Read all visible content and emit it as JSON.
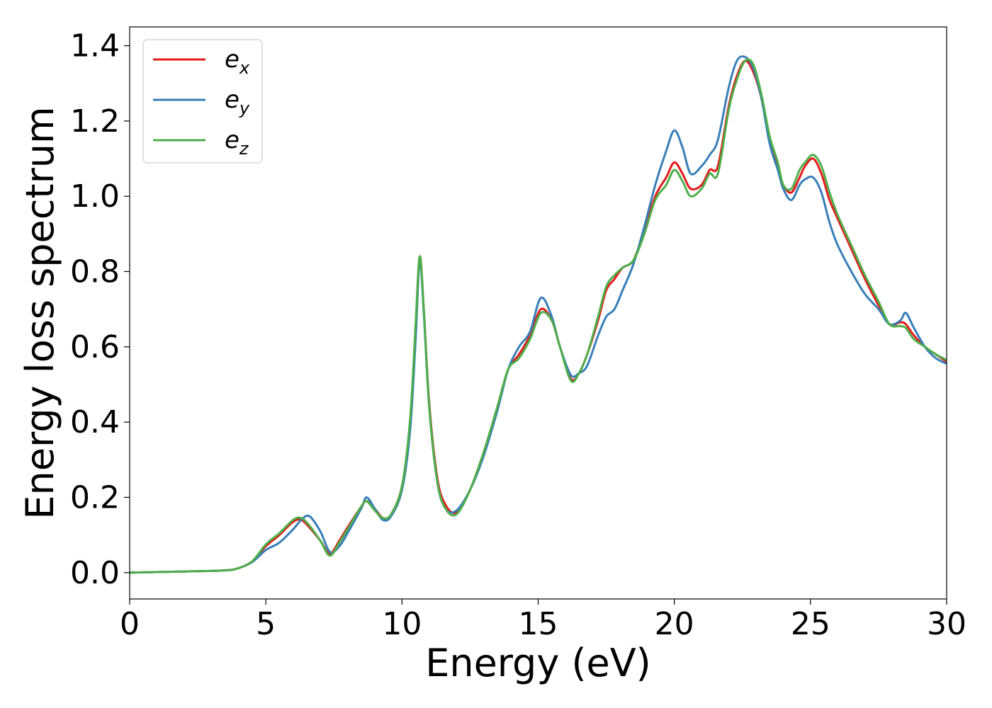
{
  "chart_data": {
    "type": "line",
    "title": "",
    "xlabel": "Energy (eV)",
    "ylabel": "Energy loss spectrum",
    "xlim": [
      0,
      30
    ],
    "ylim": [
      -0.07,
      1.45
    ],
    "xticks": [
      0,
      5,
      10,
      15,
      20,
      25,
      30
    ],
    "xtick_labels": [
      "0",
      "5",
      "10",
      "15",
      "20",
      "25",
      "30"
    ],
    "yticks": [
      0.0,
      0.2,
      0.4,
      0.6,
      0.8,
      1.0,
      1.2,
      1.4
    ],
    "ytick_labels": [
      "0.0",
      "0.2",
      "0.4",
      "0.6",
      "0.8",
      "1.0",
      "1.2",
      "1.4"
    ],
    "grid": false,
    "legend_placement": "top-left",
    "series": [
      {
        "name": "e_x",
        "legend_base": "e",
        "legend_sub": "x",
        "color": "#e41a1c",
        "x": [
          0,
          2,
          3.5,
          4,
          4.5,
          5,
          5.5,
          6,
          6.3,
          6.6,
          7,
          7.35,
          7.7,
          8,
          8.5,
          8.7,
          9,
          9.3,
          9.6,
          10,
          10.3,
          10.5,
          10.65,
          10.8,
          11,
          11.3,
          11.6,
          12,
          12.5,
          13,
          13.5,
          13.9,
          14.3,
          14.7,
          15.1,
          15.5,
          15.8,
          16.2,
          16.5,
          16.8,
          17.2,
          17.5,
          17.8,
          18.1,
          18.5,
          18.9,
          19.3,
          19.7,
          20,
          20.3,
          20.6,
          21,
          21.3,
          21.6,
          22,
          22.3,
          22.6,
          22.9,
          23.2,
          23.5,
          23.8,
          24,
          24.3,
          24.6,
          24.8,
          25.1,
          25.4,
          25.7,
          26,
          26.5,
          27,
          27.5,
          27.9,
          28.3,
          28.5,
          28.8,
          29.2,
          29.6,
          30
        ],
        "y": [
          0.0,
          0.003,
          0.006,
          0.012,
          0.03,
          0.07,
          0.1,
          0.135,
          0.14,
          0.12,
          0.085,
          0.05,
          0.085,
          0.12,
          0.175,
          0.19,
          0.17,
          0.145,
          0.155,
          0.23,
          0.4,
          0.65,
          0.84,
          0.7,
          0.45,
          0.25,
          0.18,
          0.16,
          0.22,
          0.32,
          0.44,
          0.54,
          0.58,
          0.63,
          0.7,
          0.67,
          0.6,
          0.515,
          0.53,
          0.58,
          0.67,
          0.75,
          0.78,
          0.81,
          0.83,
          0.91,
          1.0,
          1.05,
          1.09,
          1.06,
          1.02,
          1.03,
          1.07,
          1.08,
          1.24,
          1.32,
          1.36,
          1.33,
          1.26,
          1.15,
          1.08,
          1.03,
          1.01,
          1.05,
          1.08,
          1.1,
          1.06,
          0.99,
          0.94,
          0.86,
          0.78,
          0.71,
          0.66,
          0.665,
          0.66,
          0.63,
          0.6,
          0.58,
          0.56
        ]
      },
      {
        "name": "e_y",
        "legend_base": "e",
        "legend_sub": "y",
        "color": "#377eb8",
        "x": [
          0,
          2,
          3.5,
          4,
          4.5,
          5,
          5.5,
          6,
          6.3,
          6.6,
          7,
          7.35,
          7.7,
          8,
          8.5,
          8.7,
          9,
          9.3,
          9.6,
          10,
          10.3,
          10.5,
          10.65,
          10.8,
          11,
          11.3,
          11.6,
          12,
          12.5,
          13,
          13.5,
          13.9,
          14.3,
          14.7,
          15.1,
          15.5,
          15.8,
          16.2,
          16.5,
          16.8,
          17.2,
          17.5,
          17.8,
          18.1,
          18.5,
          18.9,
          19.3,
          19.7,
          20,
          20.3,
          20.6,
          21,
          21.3,
          21.6,
          22,
          22.3,
          22.6,
          22.9,
          23.2,
          23.5,
          23.8,
          24,
          24.3,
          24.6,
          24.8,
          25.1,
          25.4,
          25.7,
          26,
          26.5,
          27,
          27.5,
          27.9,
          28.3,
          28.5,
          28.8,
          29.2,
          29.6,
          30
        ],
        "y": [
          0.0,
          0.003,
          0.006,
          0.012,
          0.028,
          0.06,
          0.08,
          0.115,
          0.14,
          0.15,
          0.11,
          0.055,
          0.07,
          0.105,
          0.17,
          0.2,
          0.17,
          0.14,
          0.15,
          0.22,
          0.38,
          0.62,
          0.83,
          0.69,
          0.44,
          0.24,
          0.17,
          0.165,
          0.22,
          0.31,
          0.43,
          0.54,
          0.6,
          0.64,
          0.73,
          0.68,
          0.6,
          0.525,
          0.53,
          0.55,
          0.63,
          0.68,
          0.7,
          0.75,
          0.82,
          0.92,
          1.03,
          1.12,
          1.175,
          1.13,
          1.06,
          1.08,
          1.11,
          1.15,
          1.29,
          1.36,
          1.37,
          1.34,
          1.26,
          1.14,
          1.07,
          1.02,
          0.99,
          1.03,
          1.045,
          1.05,
          1.01,
          0.93,
          0.87,
          0.8,
          0.74,
          0.7,
          0.66,
          0.67,
          0.69,
          0.65,
          0.6,
          0.57,
          0.555
        ]
      },
      {
        "name": "e_z",
        "legend_base": "e",
        "legend_sub": "z",
        "color": "#4daf4a",
        "x": [
          0,
          2,
          3.5,
          4,
          4.5,
          5,
          5.5,
          6,
          6.3,
          6.6,
          7,
          7.35,
          7.7,
          8,
          8.5,
          8.7,
          9,
          9.3,
          9.6,
          10,
          10.3,
          10.5,
          10.65,
          10.8,
          11,
          11.3,
          11.6,
          12,
          12.5,
          13,
          13.5,
          13.9,
          14.3,
          14.7,
          15.1,
          15.5,
          15.8,
          16.2,
          16.5,
          16.8,
          17.2,
          17.5,
          17.8,
          18.1,
          18.5,
          18.9,
          19.3,
          19.7,
          20,
          20.3,
          20.6,
          21,
          21.3,
          21.6,
          22,
          22.3,
          22.6,
          22.9,
          23.2,
          23.5,
          23.8,
          24,
          24.3,
          24.6,
          24.8,
          25.1,
          25.4,
          25.7,
          26,
          26.5,
          27,
          27.5,
          27.9,
          28.3,
          28.5,
          28.8,
          29.2,
          29.6,
          30
        ],
        "y": [
          0.0,
          0.003,
          0.006,
          0.012,
          0.03,
          0.075,
          0.105,
          0.14,
          0.145,
          0.125,
          0.085,
          0.045,
          0.08,
          0.115,
          0.175,
          0.19,
          0.165,
          0.145,
          0.155,
          0.23,
          0.41,
          0.66,
          0.84,
          0.7,
          0.44,
          0.24,
          0.17,
          0.155,
          0.22,
          0.32,
          0.44,
          0.54,
          0.57,
          0.62,
          0.69,
          0.67,
          0.6,
          0.51,
          0.53,
          0.58,
          0.68,
          0.76,
          0.79,
          0.81,
          0.83,
          0.9,
          0.99,
          1.03,
          1.07,
          1.04,
          1.0,
          1.02,
          1.06,
          1.06,
          1.23,
          1.31,
          1.36,
          1.35,
          1.27,
          1.16,
          1.09,
          1.03,
          1.02,
          1.07,
          1.09,
          1.11,
          1.08,
          1.01,
          0.95,
          0.87,
          0.79,
          0.72,
          0.66,
          0.655,
          0.65,
          0.62,
          0.6,
          0.58,
          0.565
        ]
      }
    ]
  }
}
